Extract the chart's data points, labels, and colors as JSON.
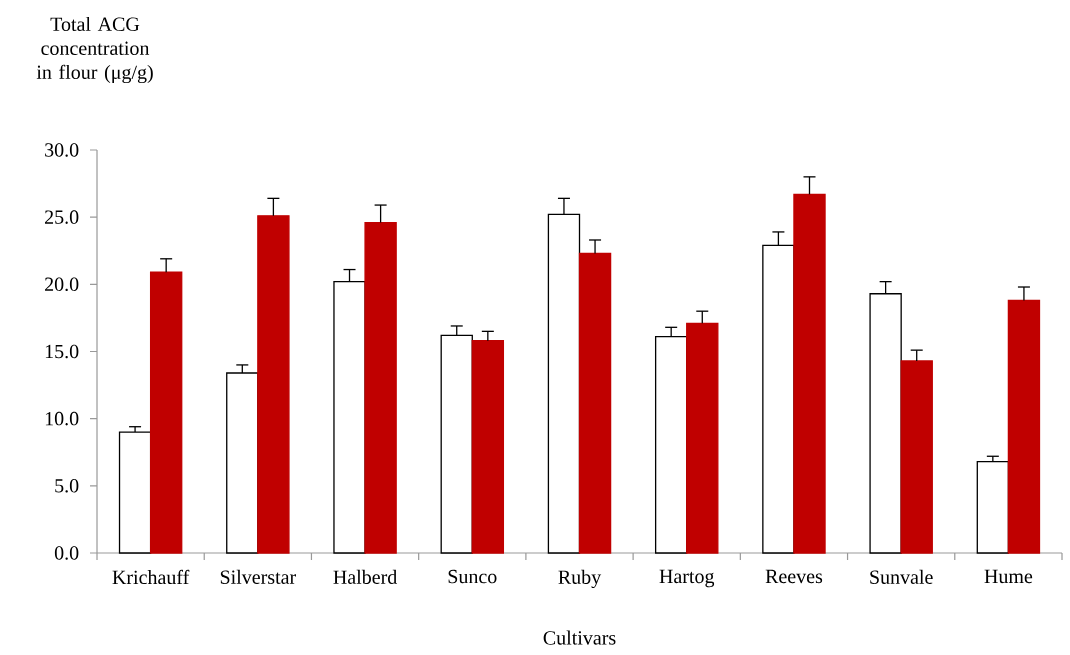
{
  "chart_data": {
    "type": "bar",
    "xlabel": "Cultivars",
    "ylabel": "Total ACG concentration in flour (μg/g)",
    "categories": [
      "Krichauff",
      "Silverstar",
      "Halberd",
      "Sunco",
      "Ruby",
      "Hartog",
      "Reeves",
      "Sunvale",
      "Hume"
    ],
    "series": [
      {
        "color": "#ffffff",
        "values": [
          9.0,
          13.4,
          20.2,
          16.2,
          25.2,
          16.1,
          22.9,
          19.3,
          6.8
        ],
        "errors": [
          [
            9.0,
            9.4
          ],
          [
            13.4,
            14.0
          ],
          [
            20.2,
            21.1
          ],
          [
            16.2,
            16.9
          ],
          [
            25.2,
            26.4
          ],
          [
            16.1,
            16.8
          ],
          [
            22.9,
            23.9
          ],
          [
            19.3,
            20.2
          ],
          [
            6.8,
            7.2
          ]
        ]
      },
      {
        "color": "#c00000",
        "values": [
          20.9,
          25.1,
          24.6,
          15.8,
          22.3,
          17.1,
          26.7,
          14.3,
          18.8
        ],
        "errors": [
          [
            20.9,
            21.9
          ],
          [
            25.1,
            26.4
          ],
          [
            24.6,
            25.9
          ],
          [
            15.8,
            16.5
          ],
          [
            22.3,
            23.3
          ],
          [
            17.1,
            18.0
          ],
          [
            26.7,
            28.0
          ],
          [
            14.3,
            15.1
          ],
          [
            18.8,
            19.8
          ]
        ]
      }
    ],
    "ylim": [
      0,
      30
    ],
    "yticks": [
      {
        "value": 0,
        "label": "0.0"
      },
      {
        "value": 5,
        "label": "5.0"
      },
      {
        "value": 10,
        "label": "10.0"
      },
      {
        "value": 15,
        "label": "15.0"
      },
      {
        "value": 20,
        "label": "20.0"
      },
      {
        "value": 25,
        "label": "25.0"
      },
      {
        "value": 30,
        "label": "30.0"
      }
    ]
  }
}
